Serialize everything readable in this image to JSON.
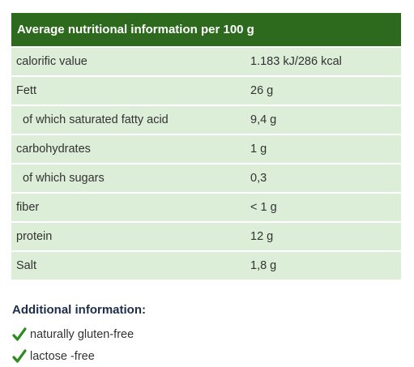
{
  "table": {
    "title": "Average nutritional information per 100 g",
    "rows": [
      [
        "calorific value",
        "1.183 kJ/286 kcal"
      ],
      [
        "Fett",
        "26 g"
      ],
      [
        "of which saturated fatty acid",
        "9,4 g"
      ],
      [
        "carbohydrates",
        "1 g"
      ],
      [
        "of which sugars",
        "0,3"
      ],
      [
        "fiber",
        "< 1 g"
      ],
      [
        "protein",
        "12 g"
      ],
      [
        "Salt",
        "1,8 g"
      ]
    ]
  },
  "additional": {
    "title": "Additional information:",
    "items": [
      "naturally gluten-free",
      "lactose -free"
    ]
  }
}
